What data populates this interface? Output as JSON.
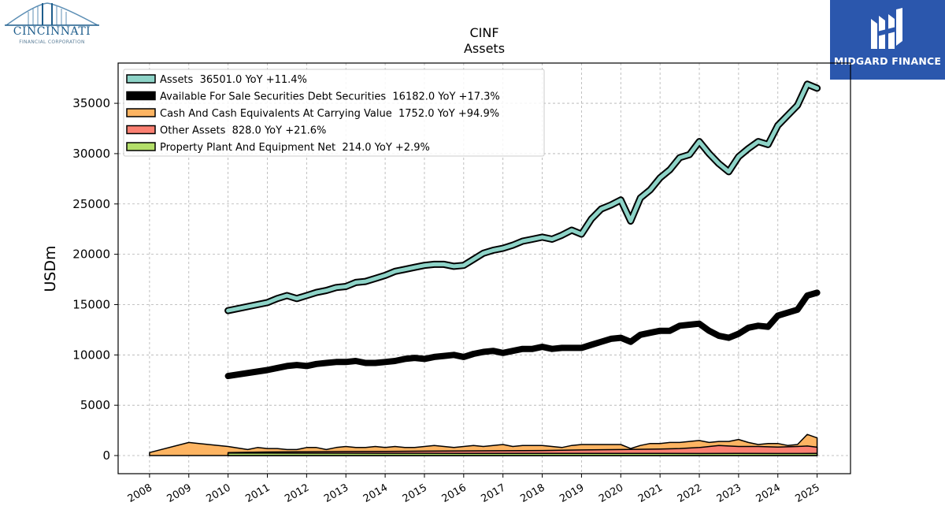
{
  "logos": {
    "left_name": "CINCINNATI",
    "left_sub": "FINANCIAL CORPORATION",
    "right_name": "MIDGARD FINANCE"
  },
  "chart_data": {
    "type": "line",
    "title": "CINF",
    "subtitle": "Assets",
    "ylabel": "USDm",
    "xlabel": "",
    "xlim": [
      2007.2,
      2025.85
    ],
    "ylim": [
      -1800,
      39000
    ],
    "yticks": [
      0,
      5000,
      10000,
      15000,
      20000,
      25000,
      30000,
      35000
    ],
    "xticks": [
      2008,
      2009,
      2010,
      2011,
      2012,
      2013,
      2014,
      2015,
      2016,
      2017,
      2018,
      2019,
      2020,
      2021,
      2022,
      2023,
      2024,
      2025
    ],
    "grid": true,
    "legend_position": "top-left",
    "series": [
      {
        "name": "Assets",
        "legend": "Assets  36501.0 YoY +11.4%",
        "color": "#8dd3c7",
        "style": "outlined-line",
        "x": [
          2010.0,
          2011.0,
          2011.25,
          2011.5,
          2011.75,
          2012.0,
          2012.25,
          2012.5,
          2012.75,
          2013.0,
          2013.25,
          2013.5,
          2013.75,
          2014.0,
          2014.25,
          2014.5,
          2014.75,
          2015.0,
          2015.25,
          2015.5,
          2015.75,
          2016.0,
          2016.25,
          2016.5,
          2016.75,
          2017.0,
          2017.25,
          2017.5,
          2017.75,
          2018.0,
          2018.25,
          2018.5,
          2018.75,
          2019.0,
          2019.25,
          2019.5,
          2019.75,
          2020.0,
          2020.25,
          2020.5,
          2020.75,
          2021.0,
          2021.25,
          2021.5,
          2021.75,
          2022.0,
          2022.25,
          2022.5,
          2022.75,
          2023.0,
          2023.25,
          2023.5,
          2023.75,
          2024.0,
          2024.25,
          2024.5,
          2024.75,
          2025.0
        ],
        "y": [
          14400,
          15200,
          15600,
          15900,
          15600,
          15900,
          16200,
          16400,
          16700,
          16800,
          17200,
          17300,
          17600,
          17900,
          18300,
          18500,
          18700,
          18900,
          19000,
          19000,
          18800,
          18900,
          19500,
          20100,
          20400,
          20600,
          20900,
          21300,
          21500,
          21700,
          21500,
          21900,
          22400,
          22000,
          23500,
          24500,
          24900,
          25400,
          23300,
          25600,
          26400,
          27600,
          28400,
          29600,
          29900,
          31200,
          30000,
          29000,
          28200,
          29700,
          30500,
          31200,
          30900,
          32800,
          33800,
          34800,
          36900,
          36501
        ]
      },
      {
        "name": "Available For Sale Securities Debt Securities",
        "legend": "Available For Sale Securities Debt Securities  16182.0 YoY +17.3%",
        "color": "#000000",
        "style": "thick-line",
        "x": [
          2010.0,
          2011.0,
          2011.25,
          2011.5,
          2011.75,
          2012.0,
          2012.25,
          2012.5,
          2012.75,
          2013.0,
          2013.25,
          2013.5,
          2013.75,
          2014.0,
          2014.25,
          2014.5,
          2014.75,
          2015.0,
          2015.25,
          2015.5,
          2015.75,
          2016.0,
          2016.25,
          2016.5,
          2016.75,
          2017.0,
          2017.25,
          2017.5,
          2017.75,
          2018.0,
          2018.25,
          2018.5,
          2018.75,
          2019.0,
          2019.25,
          2019.5,
          2019.75,
          2020.0,
          2020.25,
          2020.5,
          2020.75,
          2021.0,
          2021.25,
          2021.5,
          2021.75,
          2022.0,
          2022.25,
          2022.5,
          2022.75,
          2023.0,
          2023.25,
          2023.5,
          2023.75,
          2024.0,
          2024.25,
          2024.5,
          2024.75,
          2025.0
        ],
        "y": [
          7900,
          8500,
          8700,
          8900,
          9000,
          8900,
          9100,
          9200,
          9300,
          9300,
          9400,
          9200,
          9200,
          9300,
          9400,
          9600,
          9700,
          9600,
          9800,
          9900,
          10000,
          9800,
          10100,
          10300,
          10400,
          10200,
          10400,
          10600,
          10600,
          10800,
          10600,
          10700,
          10700,
          10700,
          11000,
          11300,
          11600,
          11700,
          11300,
          12000,
          12200,
          12400,
          12400,
          12900,
          13000,
          13100,
          12400,
          11900,
          11700,
          12100,
          12700,
          12900,
          12800,
          13900,
          14200,
          14500,
          15900,
          16182
        ]
      },
      {
        "name": "Cash And Cash Equivalents At Carrying Value",
        "legend": "Cash And Cash Equivalents At Carrying Value  1752.0 YoY +94.9%",
        "color": "#fdb462",
        "style": "area",
        "x": [
          2008.0,
          2009.0,
          2010.0,
          2010.5,
          2010.75,
          2011.0,
          2011.25,
          2011.5,
          2011.75,
          2012.0,
          2012.25,
          2012.5,
          2012.75,
          2013.0,
          2013.25,
          2013.5,
          2013.75,
          2014.0,
          2014.25,
          2014.5,
          2014.75,
          2015.0,
          2015.25,
          2015.5,
          2015.75,
          2016.0,
          2016.25,
          2016.5,
          2016.75,
          2017.0,
          2017.25,
          2017.5,
          2017.75,
          2018.0,
          2018.25,
          2018.5,
          2018.75,
          2019.0,
          2019.25,
          2019.5,
          2019.75,
          2020.0,
          2020.25,
          2020.5,
          2020.75,
          2021.0,
          2021.25,
          2021.5,
          2021.75,
          2022.0,
          2022.25,
          2022.5,
          2022.75,
          2023.0,
          2023.25,
          2023.5,
          2023.75,
          2024.0,
          2024.25,
          2024.5,
          2024.75,
          2025.0
        ],
        "y": [
          300,
          1300,
          900,
          600,
          800,
          700,
          700,
          600,
          600,
          800,
          800,
          600,
          800,
          900,
          800,
          800,
          900,
          800,
          900,
          800,
          800,
          900,
          1000,
          900,
          800,
          900,
          1000,
          900,
          1000,
          1100,
          900,
          1000,
          1000,
          1000,
          900,
          800,
          1000,
          1100,
          1100,
          1100,
          1100,
          1100,
          700,
          1000,
          1200,
          1200,
          1300,
          1300,
          1400,
          1500,
          1300,
          1400,
          1400,
          1600,
          1300,
          1100,
          1200,
          1200,
          1000,
          1100,
          2100,
          1752
        ]
      },
      {
        "name": "Other Assets",
        "legend": "Other Assets  828.0 YoY +21.6%",
        "color": "#fb8072",
        "style": "area",
        "x": [
          2010.0,
          2011.0,
          2012.0,
          2013.0,
          2014.0,
          2015.0,
          2016.0,
          2017.0,
          2018.0,
          2019.0,
          2020.0,
          2021.0,
          2021.5,
          2022.0,
          2022.5,
          2023.0,
          2023.5,
          2024.0,
          2024.5,
          2024.75,
          2025.0
        ],
        "y": [
          300,
          350,
          380,
          400,
          420,
          440,
          460,
          480,
          500,
          560,
          600,
          650,
          700,
          800,
          1000,
          900,
          900,
          850,
          900,
          950,
          828
        ]
      },
      {
        "name": "Property Plant And Equipment Net",
        "legend": "Property Plant And Equipment Net  214.0 YoY +2.9%",
        "color": "#b3de69",
        "style": "area",
        "x": [
          2010.0,
          2011.0,
          2012.0,
          2013.0,
          2014.0,
          2015.0,
          2016.0,
          2017.0,
          2018.0,
          2019.0,
          2020.0,
          2021.0,
          2022.0,
          2023.0,
          2024.0,
          2025.0
        ],
        "y": [
          250,
          245,
          240,
          235,
          230,
          225,
          220,
          215,
          210,
          210,
          212,
          210,
          208,
          210,
          208,
          214
        ]
      }
    ]
  }
}
